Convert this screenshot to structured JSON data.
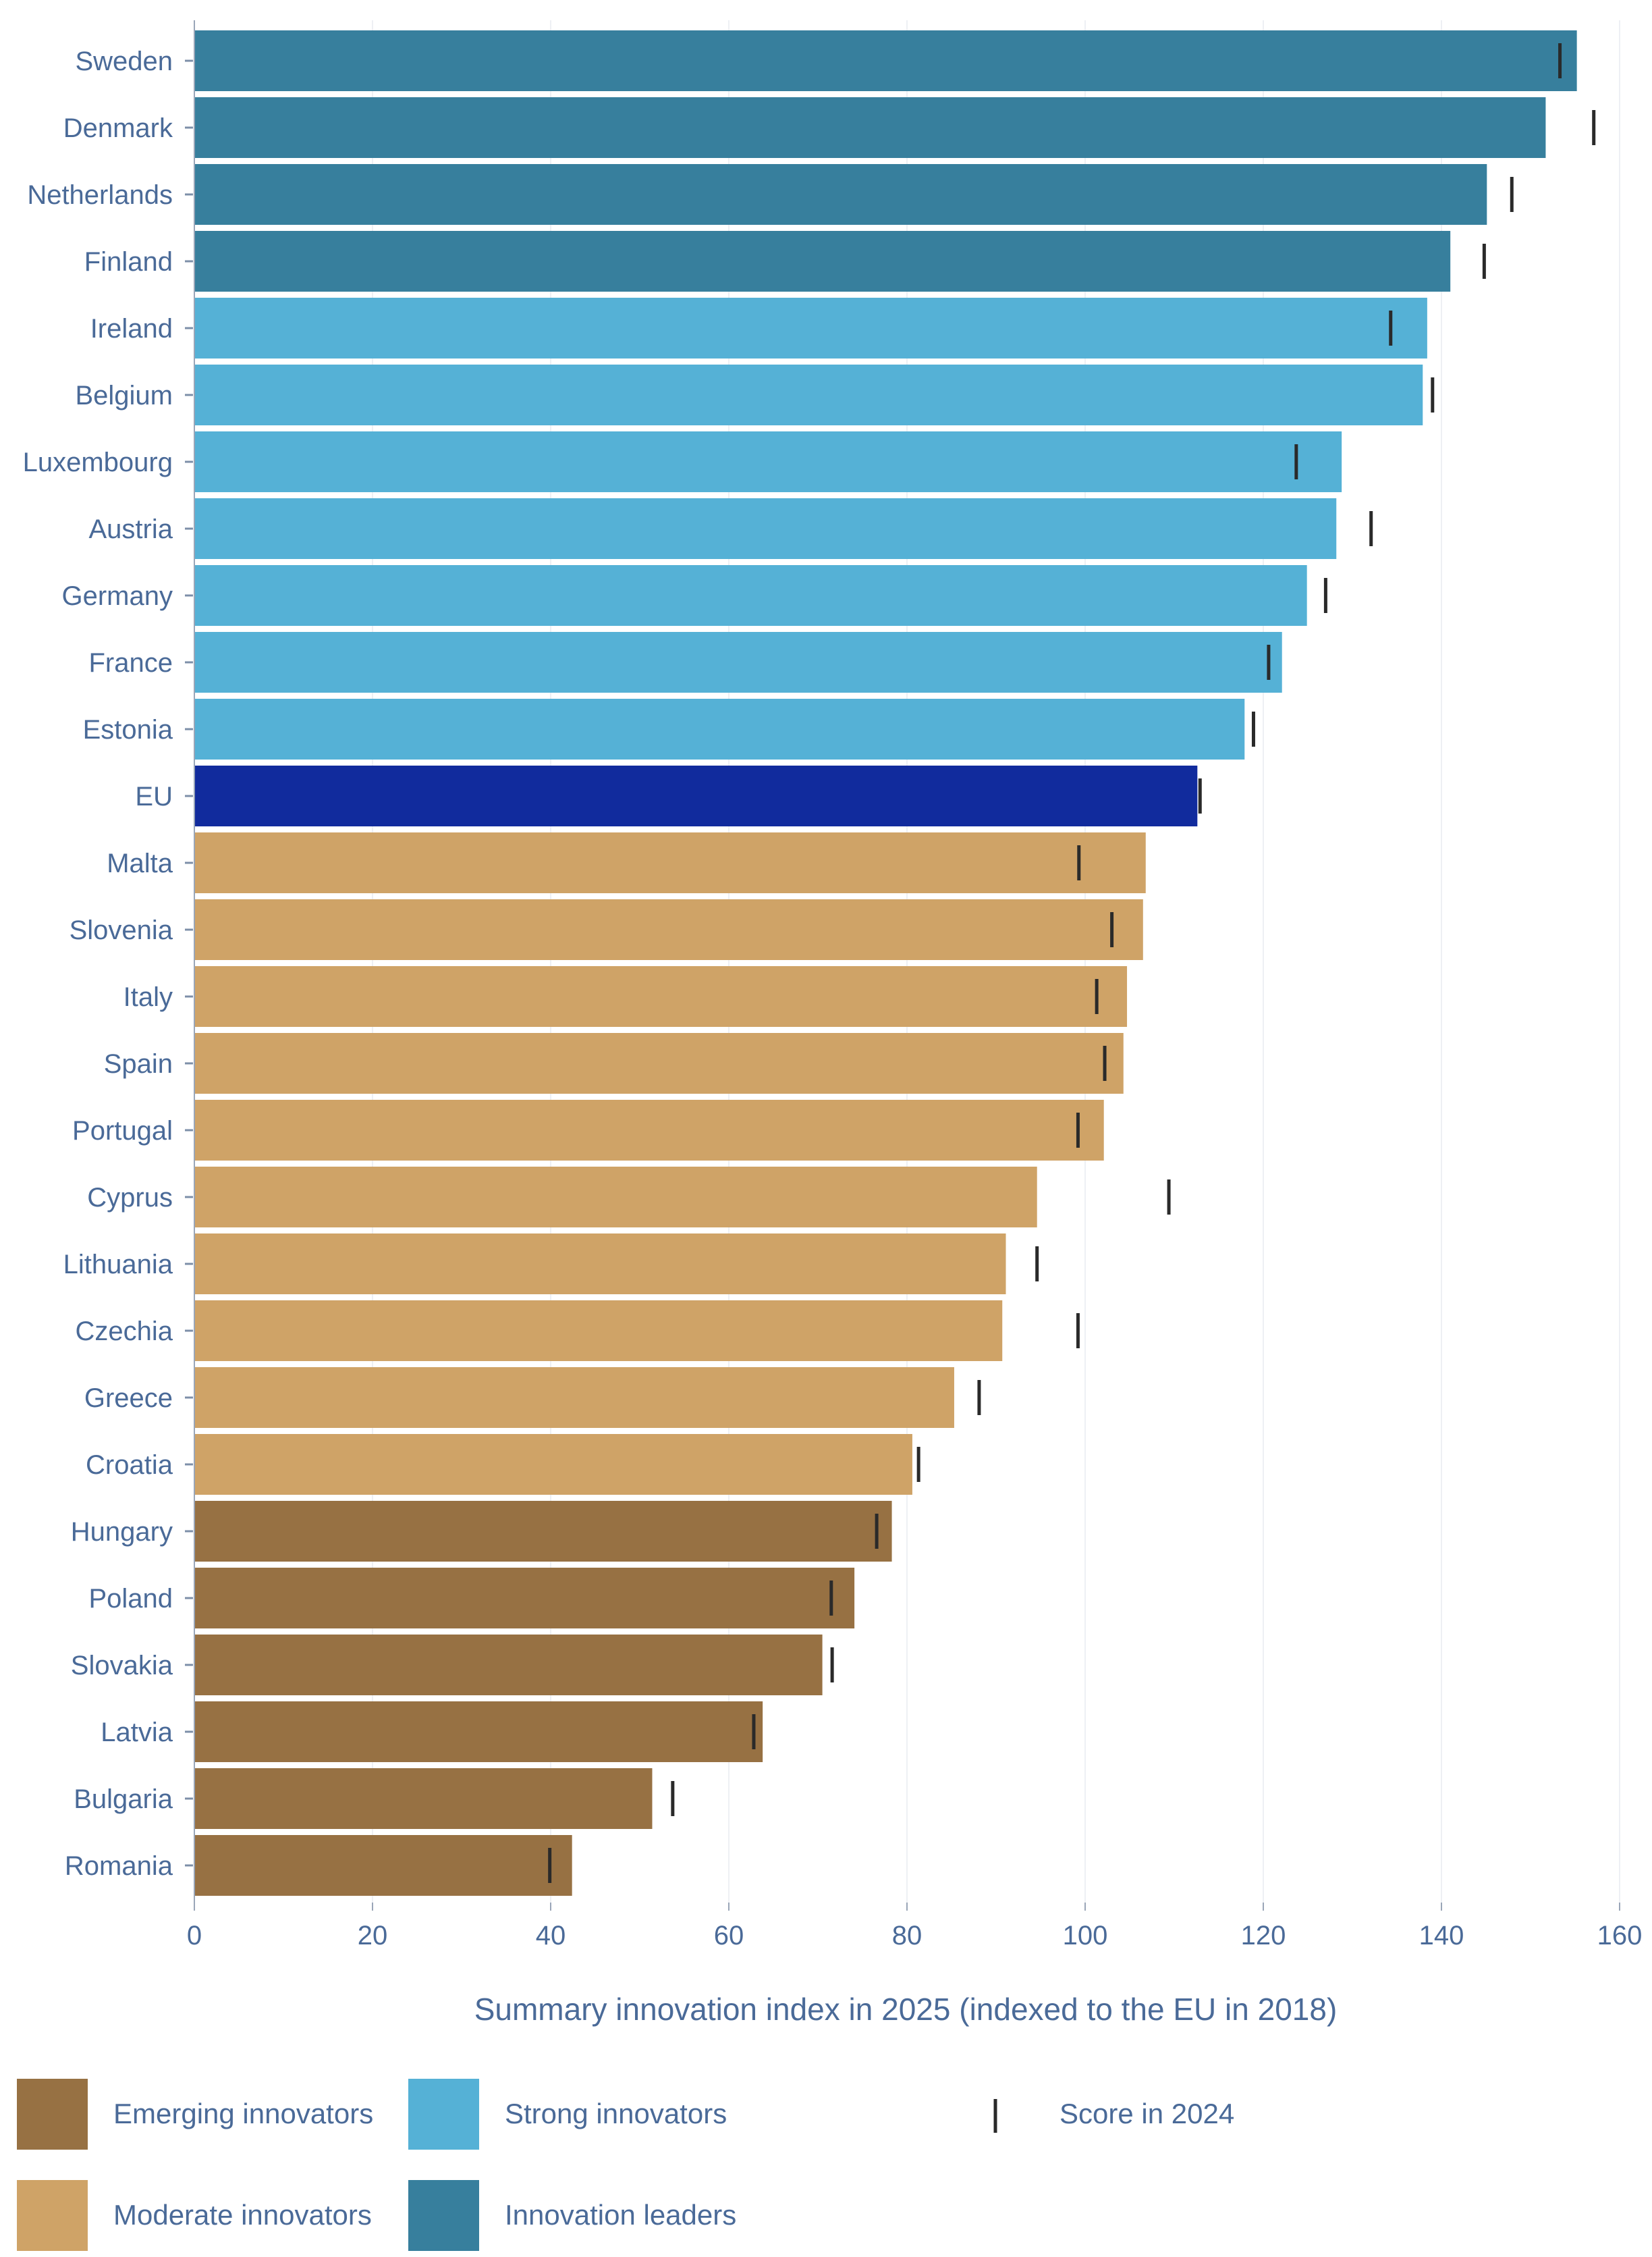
{
  "chart_data": {
    "type": "bar",
    "orientation": "horizontal",
    "xlabel": "Summary innovation index in 2025 (indexed to the EU in 2018)",
    "xlim": [
      0,
      160
    ],
    "xticks": [
      0,
      20,
      40,
      60,
      80,
      100,
      120,
      140,
      160
    ],
    "grid": true,
    "legend_placement": "bottom",
    "colors": {
      "innovation_leaders": "#377f9d",
      "strong_innovators": "#55b1d6",
      "eu": "#112b9d",
      "moderate_innovators": "#cfa367",
      "emerging_innovators": "#977143",
      "marker": "#2a2a2a"
    },
    "categories": [
      "Sweden",
      "Denmark",
      "Netherlands",
      "Finland",
      "Ireland",
      "Belgium",
      "Luxembourg",
      "Austria",
      "Germany",
      "France",
      "Estonia",
      "EU",
      "Malta",
      "Slovenia",
      "Italy",
      "Spain",
      "Portugal",
      "Cyprus",
      "Lithuania",
      "Czechia",
      "Greece",
      "Croatia",
      "Hungary",
      "Poland",
      "Slovakia",
      "Latvia",
      "Bulgaria",
      "Romania"
    ],
    "groups": [
      "innovation_leaders",
      "innovation_leaders",
      "innovation_leaders",
      "innovation_leaders",
      "strong_innovators",
      "strong_innovators",
      "strong_innovators",
      "strong_innovators",
      "strong_innovators",
      "strong_innovators",
      "strong_innovators",
      "eu",
      "moderate_innovators",
      "moderate_innovators",
      "moderate_innovators",
      "moderate_innovators",
      "moderate_innovators",
      "moderate_innovators",
      "moderate_innovators",
      "moderate_innovators",
      "moderate_innovators",
      "moderate_innovators",
      "emerging_innovators",
      "emerging_innovators",
      "emerging_innovators",
      "emerging_innovators",
      "emerging_innovators",
      "emerging_innovators"
    ],
    "series": [
      {
        "name": "Summary innovation index in 2025",
        "values": [
          155.2,
          151.7,
          145.1,
          141.0,
          138.4,
          137.9,
          128.8,
          128.2,
          124.9,
          122.1,
          117.9,
          112.6,
          106.8,
          106.5,
          104.7,
          104.3,
          102.1,
          94.6,
          91.1,
          90.7,
          85.3,
          80.6,
          78.3,
          74.1,
          70.5,
          63.8,
          51.4,
          42.4
        ]
      },
      {
        "name": "Score in 2024",
        "values": [
          153.3,
          157.1,
          147.9,
          144.8,
          134.3,
          139.0,
          123.7,
          132.1,
          127.0,
          120.6,
          118.9,
          112.9,
          99.3,
          103.0,
          101.3,
          102.2,
          99.2,
          109.4,
          94.6,
          99.2,
          88.1,
          81.3,
          76.6,
          71.5,
          71.6,
          62.8,
          53.7,
          39.9
        ]
      }
    ],
    "legend": [
      {
        "key": "emerging_innovators",
        "label": "Emerging innovators"
      },
      {
        "key": "strong_innovators",
        "label": "Strong innovators"
      },
      {
        "key": "marker",
        "label": "Score in 2024"
      },
      {
        "key": "moderate_innovators",
        "label": "Moderate innovators"
      },
      {
        "key": "innovation_leaders",
        "label": "Innovation leaders"
      }
    ]
  }
}
